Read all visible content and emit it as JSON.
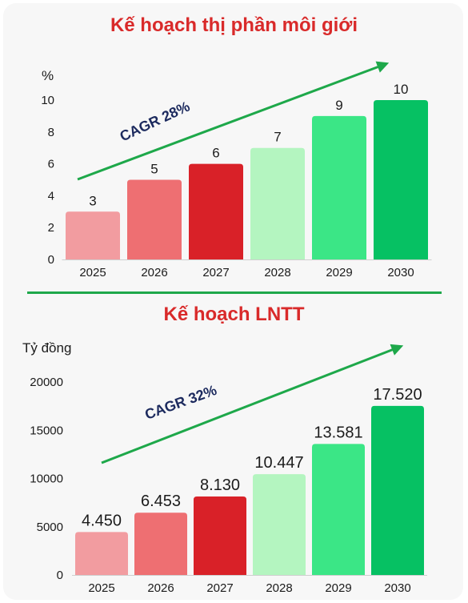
{
  "chart_data": [
    {
      "type": "bar",
      "title": "Kế hoạch thị phần môi giới",
      "ylabel": "%",
      "categories": [
        "2025",
        "2026",
        "2027",
        "2028",
        "2029",
        "2030"
      ],
      "values": [
        3,
        5,
        6,
        7,
        9,
        10
      ],
      "value_labels": [
        "3",
        "5",
        "6",
        "7",
        "9",
        "10"
      ],
      "yticks": [
        "0",
        "2",
        "4",
        "6",
        "8",
        "10"
      ],
      "ylim": [
        0,
        10
      ],
      "annotation": "CAGR 28%",
      "bar_colors": [
        "#f29ca0",
        "#ee6f72",
        "#d92128",
        "#b4f5c0",
        "#3be686",
        "#06c163"
      ],
      "arrow_color": "#1ea84a",
      "grid": false
    },
    {
      "type": "bar",
      "title": "Kế hoạch LNTT",
      "ylabel": "Tỷ đồng",
      "categories": [
        "2025",
        "2026",
        "2027",
        "2028",
        "2029",
        "2030"
      ],
      "values": [
        4450,
        6453,
        8130,
        10447,
        13581,
        17520
      ],
      "value_labels": [
        "4.450",
        "6.453",
        "8.130",
        "10.447",
        "13.581",
        "17.520"
      ],
      "yticks": [
        "0",
        "5000",
        "10000",
        "15000",
        "20000"
      ],
      "ylim": [
        0,
        20000
      ],
      "annotation": "CAGR 32%",
      "bar_colors": [
        "#f29ca0",
        "#ee6f72",
        "#d92128",
        "#b4f5c0",
        "#3be686",
        "#06c163"
      ],
      "arrow_color": "#1ea84a",
      "grid": false
    }
  ]
}
